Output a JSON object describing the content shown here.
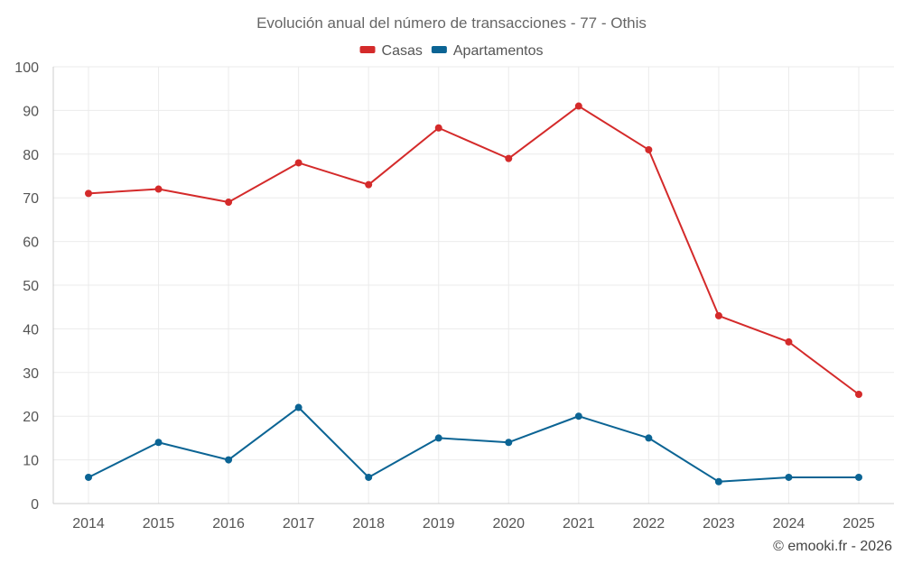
{
  "chart_data": {
    "type": "line",
    "title": "Evolución anual del número de transacciones - 77 - Othis",
    "categories": [
      "2014",
      "2015",
      "2016",
      "2017",
      "2018",
      "2019",
      "2020",
      "2021",
      "2022",
      "2023",
      "2024",
      "2025"
    ],
    "series": [
      {
        "name": "Casas",
        "color": "#d42a2a",
        "values": [
          71,
          72,
          69,
          78,
          73,
          86,
          79,
          91,
          81,
          43,
          37,
          25
        ]
      },
      {
        "name": "Apartamentos",
        "color": "#0b6494",
        "values": [
          6,
          14,
          10,
          22,
          6,
          15,
          14,
          20,
          15,
          5,
          6,
          6
        ]
      }
    ],
    "ylim": [
      0,
      100
    ],
    "yticks": [
      0,
      10,
      20,
      30,
      40,
      50,
      60,
      70,
      80,
      90,
      100
    ],
    "xlabel": "",
    "ylabel": "",
    "legend_position": "top-center",
    "grid": true
  },
  "credit": "© emooki.fr - 2026"
}
